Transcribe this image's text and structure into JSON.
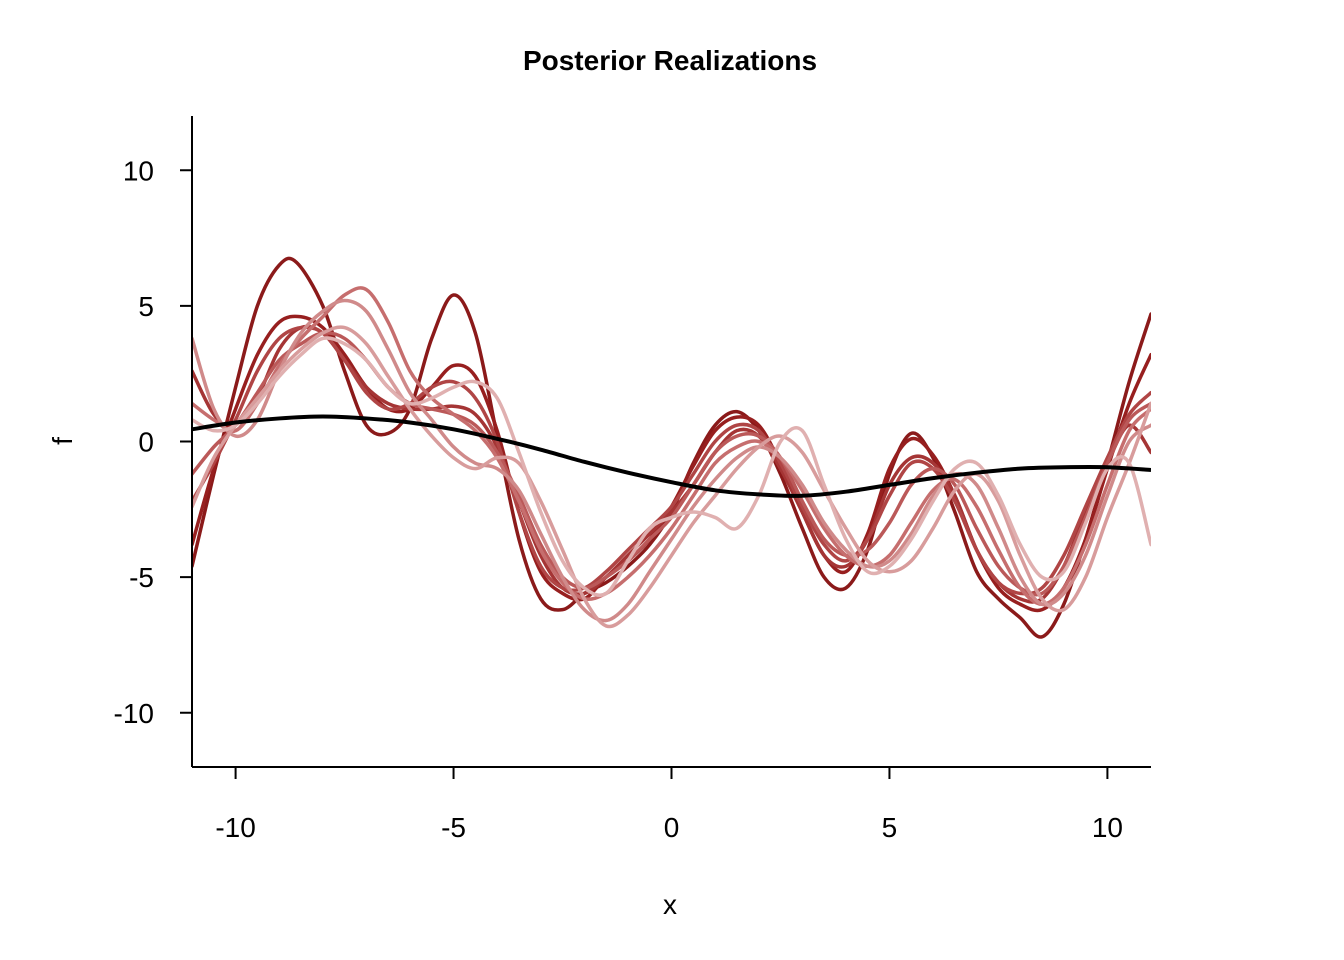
{
  "chart_data": {
    "type": "line",
    "title": "Posterior Realizations",
    "xlabel": "x",
    "ylabel": "f",
    "xlim": [
      -11,
      11
    ],
    "ylim": [
      -12,
      12
    ],
    "xticks": [
      -10,
      -5,
      0,
      5,
      10
    ],
    "yticks": [
      -10,
      -5,
      0,
      5,
      10
    ],
    "grid": false,
    "realization_colors": [
      "#8b1a1a",
      "#e0b0b0"
    ],
    "series": [
      {
        "color": "#8b1a1a",
        "x": [
          -11,
          -10.5,
          -10,
          -9.5,
          -9,
          -8.6,
          -8,
          -7.5,
          -7,
          -6.5,
          -6,
          -5.5,
          -5,
          -4.5,
          -4,
          -3.5,
          -3,
          -2.5,
          -2,
          -1.5,
          -1,
          -0.5,
          0,
          0.5,
          1,
          1.5,
          2,
          2.5,
          3,
          3.5,
          4,
          4.5,
          5,
          5.5,
          6,
          6.5,
          7,
          7.5,
          8,
          8.5,
          9,
          9.5,
          10,
          10.5,
          11
        ],
        "y": [
          -4.6,
          -1.2,
          2.0,
          5.0,
          6.5,
          6.6,
          5.0,
          2.6,
          0.6,
          0.3,
          1.2,
          3.8,
          5.4,
          4.0,
          0.2,
          -3.6,
          -5.8,
          -6.2,
          -5.6,
          -5.2,
          -4.6,
          -3.8,
          -2.6,
          -0.8,
          0.6,
          1.1,
          0.4,
          -1.2,
          -3.2,
          -5.0,
          -5.4,
          -4.0,
          -1.2,
          0.3,
          -0.6,
          -2.6,
          -4.8,
          -5.8,
          -6.5,
          -7.2,
          -6.0,
          -3.6,
          -0.8,
          2.2,
          4.7
        ]
      },
      {
        "color": "#971f1f",
        "x": [
          -11,
          -10.5,
          -10,
          -9.5,
          -9,
          -8.5,
          -8,
          -7.5,
          -7,
          -6.5,
          -6,
          -5.5,
          -5,
          -4.5,
          -4,
          -3.5,
          -3,
          -2.5,
          -2,
          -1.5,
          -1,
          -0.5,
          0,
          0.5,
          1,
          1.5,
          2,
          2.5,
          3,
          3.5,
          4,
          4.5,
          5,
          5.5,
          6,
          6.5,
          7,
          7.5,
          8,
          8.5,
          9,
          9.5,
          10,
          10.5,
          11
        ],
        "y": [
          -3.8,
          -1.0,
          1.2,
          3.2,
          4.4,
          4.6,
          4.2,
          3.2,
          2.0,
          1.2,
          1.2,
          2.0,
          2.8,
          2.4,
          0.4,
          -2.6,
          -4.8,
          -5.6,
          -5.8,
          -5.0,
          -4.4,
          -3.6,
          -2.4,
          -0.9,
          0.4,
          0.9,
          0.6,
          -0.8,
          -2.6,
          -4.2,
          -4.8,
          -3.4,
          -1.0,
          0.1,
          -0.5,
          -2.0,
          -4.0,
          -5.4,
          -6.0,
          -6.2,
          -5.4,
          -3.6,
          -1.0,
          1.4,
          3.2
        ]
      },
      {
        "color": "#a53535",
        "x": [
          -11,
          -10.5,
          -10,
          -9.5,
          -9,
          -8.5,
          -8,
          -7.5,
          -7,
          -6.5,
          -6,
          -5.5,
          -5,
          -4.5,
          -4,
          -3.5,
          -3,
          -2.5,
          -2,
          -1.5,
          -1,
          -0.5,
          0,
          0.5,
          1,
          1.5,
          2,
          2.5,
          3,
          3.5,
          4,
          4.5,
          5,
          5.5,
          6,
          6.5,
          7,
          7.5,
          8,
          8.5,
          9,
          9.5,
          10,
          10.5,
          11
        ],
        "y": [
          2.6,
          1.0,
          0.4,
          1.6,
          3.4,
          4.2,
          4.0,
          3.0,
          2.0,
          1.4,
          1.2,
          1.2,
          1.3,
          1.0,
          -0.2,
          -2.2,
          -4.2,
          -5.4,
          -5.6,
          -5.0,
          -4.2,
          -3.4,
          -2.6,
          -1.6,
          -0.4,
          0.4,
          0.2,
          -1.0,
          -2.6,
          -4.2,
          -4.6,
          -3.6,
          -1.6,
          -0.6,
          -0.8,
          -2.0,
          -4.0,
          -5.2,
          -5.8,
          -5.8,
          -4.6,
          -2.6,
          -0.8,
          0.6,
          -0.4
        ]
      },
      {
        "color": "#b04545",
        "x": [
          -11,
          -10.5,
          -10,
          -9.5,
          -9,
          -8.5,
          -8,
          -7.5,
          -7,
          -6.5,
          -6,
          -5.5,
          -5,
          -4.5,
          -4,
          -3.5,
          -3,
          -2.5,
          -2,
          -1.5,
          -1,
          -0.5,
          0,
          0.5,
          1,
          1.5,
          2,
          2.5,
          3,
          3.5,
          4,
          4.5,
          5,
          5.5,
          6,
          6.5,
          7,
          7.5,
          8,
          8.5,
          9,
          9.5,
          10,
          10.5,
          11
        ],
        "y": [
          -2.2,
          -0.8,
          0.8,
          2.6,
          3.8,
          4.2,
          4.0,
          3.0,
          1.8,
          1.2,
          1.4,
          2.0,
          2.2,
          1.6,
          0.0,
          -2.6,
          -4.6,
          -5.4,
          -5.4,
          -4.8,
          -4.0,
          -3.2,
          -2.4,
          -1.2,
          0.0,
          0.6,
          0.4,
          -0.8,
          -2.4,
          -3.8,
          -4.4,
          -3.6,
          -2.0,
          -0.8,
          -1.0,
          -2.2,
          -4.0,
          -5.2,
          -5.6,
          -5.4,
          -4.2,
          -2.4,
          -0.6,
          1.0,
          1.8
        ]
      },
      {
        "color": "#bb5959",
        "x": [
          -11,
          -10.5,
          -10,
          -9.5,
          -9,
          -8.5,
          -8,
          -7.5,
          -7,
          -6.5,
          -6,
          -5.5,
          -5,
          -4.5,
          -4,
          -3.5,
          -3,
          -2.5,
          -2,
          -1.5,
          -1,
          -0.5,
          0,
          0.5,
          1,
          1.5,
          2,
          2.5,
          3,
          3.5,
          4,
          4.5,
          5,
          5.5,
          6,
          6.5,
          7,
          7.5,
          8,
          8.5,
          9,
          9.5,
          10,
          10.5,
          11
        ],
        "y": [
          -1.2,
          -0.2,
          0.6,
          1.8,
          3.0,
          3.6,
          4.0,
          3.8,
          3.0,
          2.0,
          1.4,
          1.2,
          1.0,
          0.6,
          -0.4,
          -2.0,
          -3.8,
          -5.0,
          -5.4,
          -5.0,
          -4.4,
          -3.6,
          -2.8,
          -1.6,
          -0.4,
          0.2,
          0.2,
          -0.6,
          -2.2,
          -3.6,
          -4.2,
          -4.0,
          -3.0,
          -1.6,
          -1.0,
          -1.6,
          -3.2,
          -4.6,
          -5.4,
          -5.6,
          -4.6,
          -2.8,
          -0.8,
          0.8,
          1.4
        ]
      },
      {
        "color": "#c66e6e",
        "x": [
          -11,
          -10.5,
          -10,
          -9.5,
          -9,
          -8.5,
          -8,
          -7.5,
          -7,
          -6.5,
          -6,
          -5.5,
          -5,
          -4.5,
          -4,
          -3.5,
          -3,
          -2.5,
          -2,
          -1.5,
          -1,
          -0.5,
          0,
          0.5,
          1,
          1.5,
          2,
          2.5,
          3,
          3.5,
          4,
          4.5,
          5,
          5.5,
          6,
          6.5,
          7,
          7.5,
          8,
          8.5,
          9,
          9.5,
          10,
          10.5,
          11
        ],
        "y": [
          1.4,
          0.8,
          0.4,
          1.4,
          2.8,
          3.8,
          4.6,
          5.4,
          5.6,
          4.4,
          2.6,
          1.6,
          1.0,
          0.4,
          -0.6,
          -2.2,
          -4.0,
          -5.2,
          -5.8,
          -5.6,
          -5.0,
          -4.2,
          -3.2,
          -2.0,
          -0.8,
          -0.2,
          0.0,
          -0.6,
          -1.8,
          -3.2,
          -4.2,
          -4.6,
          -4.2,
          -3.0,
          -1.8,
          -1.4,
          -2.4,
          -4.0,
          -5.4,
          -6.0,
          -5.4,
          -3.8,
          -1.6,
          0.4,
          1.2
        ]
      },
      {
        "color": "#d08a8a",
        "x": [
          -11,
          -10.5,
          -10,
          -9.5,
          -9,
          -8.5,
          -8,
          -7.5,
          -7,
          -6.5,
          -6,
          -5.5,
          -5,
          -4.5,
          -4,
          -3.5,
          -3,
          -2.5,
          -2,
          -1.5,
          -1,
          -0.5,
          0,
          0.5,
          1,
          1.5,
          2,
          2.5,
          3,
          3.5,
          4,
          4.5,
          5,
          5.5,
          6,
          6.5,
          7,
          7.5,
          8,
          8.5,
          9,
          9.5,
          10,
          10.5,
          11
        ],
        "y": [
          3.8,
          1.2,
          0.2,
          0.8,
          2.6,
          4.0,
          4.8,
          5.2,
          4.8,
          3.4,
          1.8,
          0.8,
          -0.2,
          -0.8,
          -1.0,
          -1.8,
          -3.4,
          -5.0,
          -6.2,
          -6.6,
          -6.0,
          -4.8,
          -3.6,
          -2.4,
          -1.4,
          -0.6,
          -0.2,
          -0.6,
          -1.6,
          -3.0,
          -4.0,
          -4.6,
          -4.4,
          -3.4,
          -2.0,
          -1.2,
          -1.6,
          -3.2,
          -5.0,
          -6.0,
          -5.6,
          -4.2,
          -2.0,
          0.0,
          0.6
        ]
      },
      {
        "color": "#d89c9c",
        "x": [
          -11,
          -10.5,
          -10,
          -9.5,
          -9,
          -8.5,
          -8,
          -7.5,
          -7,
          -6.5,
          -6,
          -5.5,
          -5,
          -4.5,
          -4,
          -3.5,
          -3,
          -2.5,
          -2,
          -1.5,
          -1,
          -0.5,
          0,
          0.5,
          1,
          1.5,
          2,
          2.5,
          3,
          3.5,
          4,
          4.5,
          5,
          5.5,
          6,
          6.5,
          7,
          7.5,
          8,
          8.5,
          9,
          9.5,
          10,
          10.5,
          11
        ],
        "y": [
          -2.4,
          -0.6,
          0.6,
          1.6,
          2.6,
          3.4,
          4.0,
          4.2,
          3.6,
          2.4,
          1.2,
          0.2,
          -0.6,
          -1.0,
          -0.6,
          -0.8,
          -2.2,
          -4.0,
          -5.8,
          -6.8,
          -6.4,
          -5.4,
          -4.2,
          -3.0,
          -2.0,
          -1.0,
          -0.2,
          0.2,
          -0.4,
          -1.8,
          -3.2,
          -4.4,
          -4.8,
          -4.4,
          -3.2,
          -1.8,
          -1.2,
          -2.2,
          -4.2,
          -5.8,
          -6.2,
          -5.0,
          -2.8,
          -0.8,
          1.4
        ]
      },
      {
        "color": "#e0b0b0",
        "x": [
          -11,
          -10.5,
          -10,
          -9.5,
          -9,
          -8.5,
          -8,
          -7.5,
          -7,
          -6.5,
          -6,
          -5.5,
          -5,
          -4.5,
          -4,
          -3.5,
          -3,
          -2.5,
          -2,
          -1.5,
          -1,
          -0.5,
          0,
          0.5,
          1,
          1.5,
          2,
          2.5,
          3,
          3.5,
          4,
          4.5,
          5,
          5.5,
          6,
          6.5,
          7,
          7.5,
          8,
          8.5,
          9,
          9.5,
          10,
          10.5,
          11
        ],
        "y": [
          0.8,
          0.4,
          0.6,
          1.4,
          2.4,
          3.2,
          3.8,
          3.6,
          3.0,
          2.0,
          1.4,
          1.6,
          2.0,
          2.2,
          1.6,
          -0.4,
          -2.6,
          -4.4,
          -5.4,
          -5.6,
          -4.4,
          -3.2,
          -2.8,
          -2.6,
          -2.8,
          -3.2,
          -2.0,
          0.0,
          0.4,
          -1.6,
          -3.6,
          -4.8,
          -4.6,
          -3.6,
          -2.2,
          -1.0,
          -0.8,
          -2.0,
          -3.8,
          -5.0,
          -4.8,
          -3.0,
          -1.0,
          -0.8,
          -3.8
        ]
      }
    ],
    "mean": {
      "color": "#000000",
      "x": [
        -11,
        -10,
        -9,
        -8,
        -7,
        -6,
        -5,
        -4,
        -3,
        -2,
        -1,
        0,
        1,
        2,
        3,
        4,
        5,
        6,
        7,
        8,
        9,
        10,
        11
      ],
      "y": [
        0.45,
        0.7,
        0.85,
        0.92,
        0.85,
        0.7,
        0.45,
        0.1,
        -0.3,
        -0.75,
        -1.15,
        -1.5,
        -1.8,
        -1.95,
        -2.0,
        -1.85,
        -1.6,
        -1.35,
        -1.15,
        -1.0,
        -0.95,
        -0.95,
        -1.05
      ]
    }
  }
}
